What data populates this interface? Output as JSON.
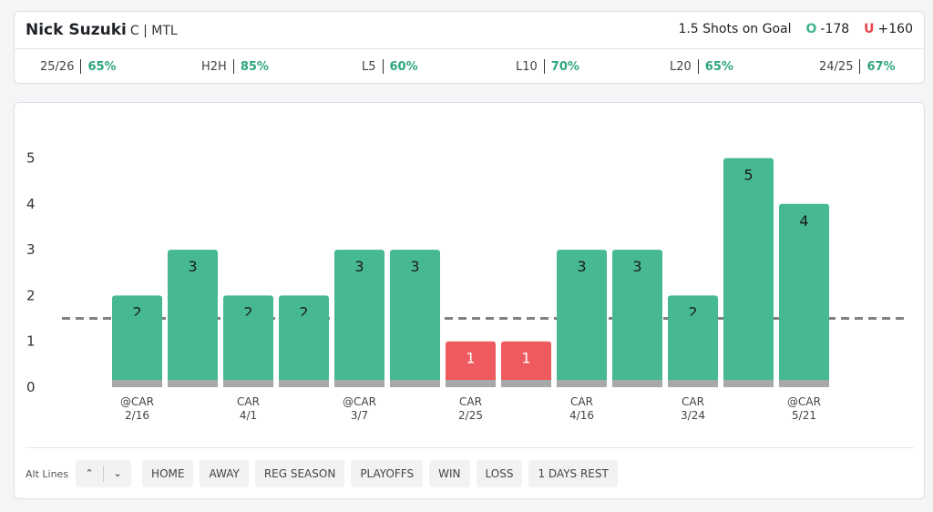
{
  "header": {
    "player_name": "Nick Suzuki",
    "player_meta": "C | MTL",
    "market_label": "1.5 Shots on Goal",
    "over_tag": "O",
    "over_odds": "-178",
    "under_tag": "U",
    "under_odds": "+160"
  },
  "splits": [
    {
      "label": "25/26",
      "value": "65%"
    },
    {
      "label": "H2H",
      "value": "85%"
    },
    {
      "label": "L5",
      "value": "60%"
    },
    {
      "label": "L10",
      "value": "70%"
    },
    {
      "label": "L20",
      "value": "65%"
    },
    {
      "label": "24/25",
      "value": "67%"
    }
  ],
  "chart_data": {
    "type": "bar",
    "categories": [
      "@CAR 2/16",
      "",
      "CAR 4/1",
      "",
      "@CAR 3/7",
      "",
      "CAR 2/25",
      "",
      "CAR 4/16",
      "",
      "CAR 3/24",
      "",
      "@CAR 5/21"
    ],
    "values": [
      2,
      3,
      2,
      2,
      3,
      3,
      1,
      1,
      3,
      3,
      2,
      5,
      4
    ],
    "line": 1.5,
    "ylim": [
      0,
      5
    ],
    "yticks": [
      0,
      1,
      2,
      3,
      4,
      5
    ],
    "grid": false,
    "colors": {
      "over": "#47b992",
      "under": "#ef5a5e",
      "base": "#a6a8aa",
      "line": "#808285"
    }
  },
  "filters": {
    "alt_lines_label": "Alt Lines",
    "up_icon": "chevron-up-icon",
    "down_icon": "chevron-down-icon",
    "up_glyph": "⌃",
    "down_glyph": "⌄",
    "buttons": [
      "HOME",
      "AWAY",
      "REG SEASON",
      "PLAYOFFS",
      "WIN",
      "LOSS",
      "1 DAYS REST"
    ]
  }
}
